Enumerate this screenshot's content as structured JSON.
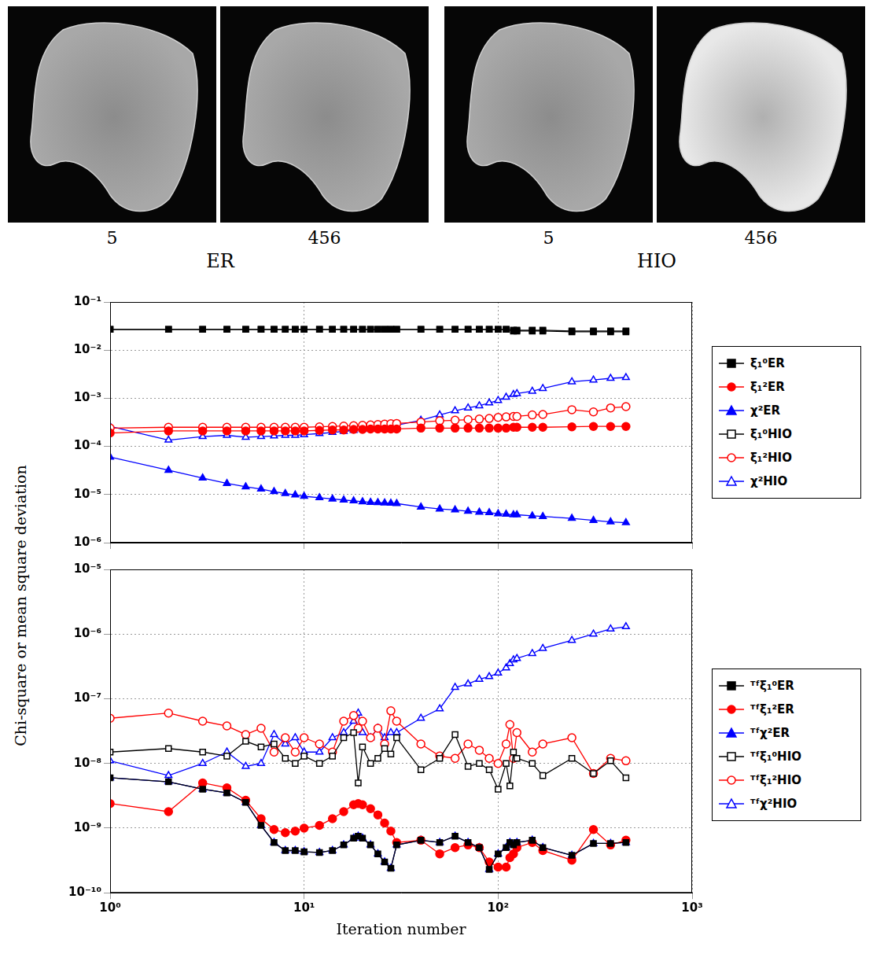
{
  "image_panels": {
    "groups": [
      {
        "name": "ER",
        "labels": [
          "5",
          "456"
        ]
      },
      {
        "name": "HIO",
        "labels": [
          "5",
          "456"
        ]
      }
    ]
  },
  "chart_data": [
    {
      "type": "line",
      "log": true,
      "grid": true,
      "legend": "right",
      "tick_labels": "y",
      "y_label": "Chi-square or mean square deviation",
      "xlim": [
        1,
        1000
      ],
      "xticks": [
        {
          "value": 1,
          "label": "10⁰"
        },
        {
          "value": 10,
          "label": "10¹"
        },
        {
          "value": 100,
          "label": "10²"
        },
        {
          "value": 1000,
          "label": "10³"
        }
      ],
      "ylim": [
        1e-06,
        0.1
      ],
      "yticks": [
        {
          "value": 1e-06,
          "label": "10⁻⁶"
        },
        {
          "value": 1e-05,
          "label": "10⁻⁵"
        },
        {
          "value": 0.0001,
          "label": "10⁻⁴"
        },
        {
          "value": 0.001,
          "label": "10⁻³"
        },
        {
          "value": 0.01,
          "label": "10⁻²"
        },
        {
          "value": 0.1,
          "label": "10⁻¹"
        }
      ],
      "x": [
        1,
        2,
        3,
        4,
        5,
        6,
        7,
        8,
        9,
        10,
        12,
        14,
        16,
        18,
        20,
        22,
        24,
        26,
        28,
        30,
        40,
        50,
        60,
        70,
        80,
        90,
        100,
        110,
        120,
        125,
        150,
        170,
        240,
        310,
        380,
        456
      ],
      "series": [
        {
          "name": "ξ₁⁰ER",
          "color": "#000000",
          "marker": "filled square",
          "line_style": "solid",
          "values": [
            0.027,
            0.027,
            0.027,
            0.027,
            0.027,
            0.027,
            0.027,
            0.027,
            0.027,
            0.027,
            0.027,
            0.027,
            0.027,
            0.027,
            0.027,
            0.027,
            0.027,
            0.027,
            0.027,
            0.027,
            0.027,
            0.027,
            0.027,
            0.027,
            0.027,
            0.027,
            0.027,
            0.027,
            0.026,
            0.026,
            0.026,
            0.026,
            0.025,
            0.025,
            0.025,
            0.025
          ]
        },
        {
          "name": "ξ₁²ER",
          "color": "#ff0000",
          "marker": "filled circle",
          "line_style": "solid",
          "values": [
            0.00019,
            0.00021,
            0.00021,
            0.00021,
            0.00021,
            0.00021,
            0.00021,
            0.00021,
            0.00021,
            0.00021,
            0.000215,
            0.00022,
            0.00022,
            0.000225,
            0.000225,
            0.00023,
            0.00023,
            0.00023,
            0.00023,
            0.00023,
            0.00024,
            0.00024,
            0.00024,
            0.00024,
            0.00024,
            0.00024,
            0.00024,
            0.00024,
            0.00025,
            0.00025,
            0.00025,
            0.00025,
            0.000255,
            0.00026,
            0.00026,
            0.00026
          ]
        },
        {
          "name": "χ²ER",
          "color": "#0000ff",
          "marker": "filled triangle",
          "line_style": "solid",
          "values": [
            6e-05,
            3.2e-05,
            2.2e-05,
            1.7e-05,
            1.45e-05,
            1.3e-05,
            1.15e-05,
            1.05e-05,
            9.8e-06,
            9.2e-06,
            8.6e-06,
            8.1e-06,
            7.7e-06,
            7.4e-06,
            7.1e-06,
            6.9e-06,
            6.8e-06,
            6.7e-06,
            6.6e-06,
            6.5e-06,
            5.5e-06,
            5e-06,
            4.8e-06,
            4.5e-06,
            4.3e-06,
            4.2e-06,
            4e-06,
            3.9e-06,
            3.8e-06,
            3.8e-06,
            3.6e-06,
            3.5e-06,
            3.2e-06,
            2.9e-06,
            2.7e-06,
            2.6e-06
          ]
        },
        {
          "name": "ξ₁⁰HIO",
          "color": "#000000",
          "marker": "open square",
          "line_style": "solid",
          "values": [
            0.027,
            0.027,
            0.027,
            0.027,
            0.027,
            0.027,
            0.027,
            0.027,
            0.027,
            0.027,
            0.027,
            0.027,
            0.027,
            0.027,
            0.027,
            0.027,
            0.027,
            0.027,
            0.027,
            0.027,
            0.027,
            0.027,
            0.027,
            0.027,
            0.027,
            0.027,
            0.027,
            0.027,
            0.025,
            0.025,
            0.025,
            0.025,
            0.024,
            0.024,
            0.024,
            0.024
          ]
        },
        {
          "name": "ξ₁²HIO",
          "color": "#ff0000",
          "marker": "open circle",
          "line_style": "solid",
          "values": [
            0.00024,
            0.00025,
            0.00025,
            0.00025,
            0.00025,
            0.00025,
            0.00025,
            0.00025,
            0.00025,
            0.00025,
            0.000255,
            0.00026,
            0.000265,
            0.00027,
            0.000275,
            0.00028,
            0.000285,
            0.00029,
            0.000295,
            0.0003,
            0.00032,
            0.00034,
            0.00035,
            0.00036,
            0.00037,
            0.00038,
            0.0004,
            0.00041,
            0.00042,
            0.00042,
            0.00045,
            0.00046,
            0.00058,
            0.00052,
            0.00063,
            0.00067
          ]
        },
        {
          "name": "χ²HIO",
          "color": "#0000ff",
          "marker": "open triangle",
          "line_style": "solid",
          "values": [
            0.00026,
            0.000135,
            0.00016,
            0.00017,
            0.000155,
            0.00016,
            0.000165,
            0.00017,
            0.00017,
            0.000175,
            0.000185,
            0.000195,
            0.000205,
            0.000215,
            0.000225,
            0.000235,
            0.000245,
            0.000255,
            0.000265,
            0.000275,
            0.00035,
            0.00045,
            0.00055,
            0.00063,
            0.0007,
            0.0008,
            0.0009,
            0.00105,
            0.0012,
            0.00125,
            0.0014,
            0.0016,
            0.0022,
            0.0024,
            0.0026,
            0.0027
          ]
        }
      ]
    },
    {
      "type": "line",
      "log": true,
      "grid": true,
      "legend": "right",
      "x_label": "Iteration number",
      "xlim": [
        1,
        1000
      ],
      "xticks": [
        {
          "value": 1,
          "label": "10⁰"
        },
        {
          "value": 10,
          "label": "10¹"
        },
        {
          "value": 100,
          "label": "10²"
        },
        {
          "value": 1000,
          "label": "10³"
        }
      ],
      "ylim": [
        1e-10,
        1e-05
      ],
      "yticks": [
        {
          "value": 1e-10,
          "label": "10⁻¹⁰"
        },
        {
          "value": 1e-09,
          "label": "10⁻⁹"
        },
        {
          "value": 1e-08,
          "label": "10⁻⁸"
        },
        {
          "value": 1e-07,
          "label": "10⁻⁷"
        },
        {
          "value": 1e-06,
          "label": "10⁻⁶"
        },
        {
          "value": 1e-05,
          "label": "10⁻⁵"
        }
      ],
      "x": [
        1,
        2,
        3,
        4,
        5,
        6,
        7,
        8,
        9,
        10,
        12,
        14,
        16,
        18,
        19,
        20,
        22,
        24,
        26,
        28,
        30,
        40,
        50,
        60,
        70,
        80,
        90,
        100,
        110,
        115,
        120,
        125,
        150,
        170,
        240,
        310,
        380,
        456
      ],
      "series": [
        {
          "name": "ᵀᶠξ₁⁰ER",
          "color": "#000000",
          "marker": "filled square",
          "line_style": "solid",
          "values": [
            6e-09,
            5.2e-09,
            4e-09,
            3.5e-09,
            2.5e-09,
            1.1e-09,
            6e-10,
            4.5e-10,
            4.5e-10,
            4.3e-10,
            4.2e-10,
            4.5e-10,
            5.5e-10,
            7e-10,
            7.5e-10,
            7e-10,
            5.5e-10,
            4e-10,
            3e-10,
            2.4e-10,
            5.5e-10,
            6.5e-10,
            6e-10,
            7.5e-10,
            6e-10,
            5e-10,
            2.3e-10,
            4e-10,
            5e-10,
            6e-10,
            5.5e-10,
            6e-10,
            6.5e-10,
            5e-10,
            3.8e-10,
            5.8e-10,
            5.8e-10,
            6e-10
          ]
        },
        {
          "name": "ᵀᶠξ₁²ER",
          "color": "#ff0000",
          "marker": "filled circle",
          "line_style": "solid",
          "values": [
            2.4e-09,
            1.8e-09,
            5e-09,
            4.2e-09,
            2.7e-09,
            1.4e-09,
            9.5e-10,
            8.5e-10,
            9e-10,
            1e-09,
            1.1e-09,
            1.4e-09,
            1.8e-09,
            2.3e-09,
            2.4e-09,
            2.3e-09,
            2e-09,
            1.6e-09,
            1.2e-09,
            9e-10,
            6e-10,
            6.5e-10,
            4e-10,
            5e-10,
            5.5e-10,
            5e-10,
            3e-10,
            2.5e-10,
            2.5e-10,
            3.5e-10,
            4e-10,
            5e-10,
            6e-10,
            4.5e-10,
            3.2e-10,
            9.5e-10,
            5.5e-10,
            6.5e-10
          ]
        },
        {
          "name": "ᵀᶠχ²ER",
          "color": "#0000ff",
          "marker": "filled triangle",
          "line_style": "solid",
          "values": [
            6e-09,
            5.2e-09,
            4e-09,
            3.5e-09,
            2.5e-09,
            1.1e-09,
            6e-10,
            4.5e-10,
            4.5e-10,
            4.3e-10,
            4.2e-10,
            4.5e-10,
            5.5e-10,
            7e-10,
            7.5e-10,
            7e-10,
            5.5e-10,
            4e-10,
            3e-10,
            2.4e-10,
            5.5e-10,
            6.5e-10,
            6e-10,
            7.5e-10,
            6e-10,
            5e-10,
            2.3e-10,
            4e-10,
            5e-10,
            6e-10,
            5.5e-10,
            6e-10,
            6.5e-10,
            5e-10,
            3.8e-10,
            5.8e-10,
            5.8e-10,
            6e-10
          ]
        },
        {
          "name": "ᵀᶠξ₁⁰HIO",
          "color": "#000000",
          "marker": "open square",
          "line_style": "solid",
          "values": [
            1.5e-08,
            1.7e-08,
            1.5e-08,
            1.3e-08,
            2.2e-08,
            1.8e-08,
            2e-08,
            1.2e-08,
            1e-08,
            1.3e-08,
            1e-08,
            1.3e-08,
            2.5e-08,
            3e-08,
            5e-09,
            1.8e-08,
            1e-08,
            1.2e-08,
            1.7e-08,
            1.4e-08,
            2.5e-08,
            8e-09,
            1.2e-08,
            2.8e-08,
            9e-09,
            1e-08,
            8e-09,
            4e-09,
            1e-08,
            4.5e-09,
            1.5e-08,
            1.2e-08,
            1e-08,
            6.5e-09,
            1.2e-08,
            7e-09,
            1.1e-08,
            6e-09
          ]
        },
        {
          "name": "ᵀᶠξ₁²HIO",
          "color": "#ff0000",
          "marker": "open circle",
          "line_style": "solid",
          "values": [
            5e-08,
            6e-08,
            4.5e-08,
            3.8e-08,
            2.8e-08,
            3.5e-08,
            1.5e-08,
            2.5e-08,
            1.5e-08,
            2.5e-08,
            2e-08,
            1.5e-08,
            4.5e-08,
            5.5e-08,
            3.5e-08,
            4.5e-08,
            2.5e-08,
            3.5e-08,
            2e-08,
            6.5e-08,
            4.5e-08,
            2e-08,
            1.3e-08,
            1.2e-08,
            2e-08,
            1.6e-08,
            1.2e-08,
            1e-08,
            2e-08,
            4e-08,
            1.2e-08,
            3e-08,
            1.5e-08,
            2e-08,
            2.5e-08,
            7e-09,
            1.2e-08,
            1.1e-08
          ]
        },
        {
          "name": "ᵀᶠχ²HIO",
          "color": "#0000ff",
          "marker": "open triangle",
          "line_style": "solid",
          "values": [
            1.1e-08,
            6.5e-09,
            1e-08,
            1.5e-08,
            9e-09,
            1e-08,
            2.8e-08,
            2e-08,
            2.5e-08,
            1.5e-08,
            1.5e-08,
            2.5e-08,
            3e-08,
            4.5e-08,
            6e-08,
            3e-08,
            2.5e-08,
            3.5e-08,
            2.5e-08,
            3e-08,
            3e-08,
            5e-08,
            7e-08,
            1.5e-07,
            1.7e-07,
            2e-07,
            2.2e-07,
            2.5e-07,
            3e-07,
            3.5e-07,
            4e-07,
            4.2e-07,
            5e-07,
            6e-07,
            8e-07,
            1e-06,
            1.2e-06,
            1.3e-06
          ]
        }
      ]
    }
  ]
}
